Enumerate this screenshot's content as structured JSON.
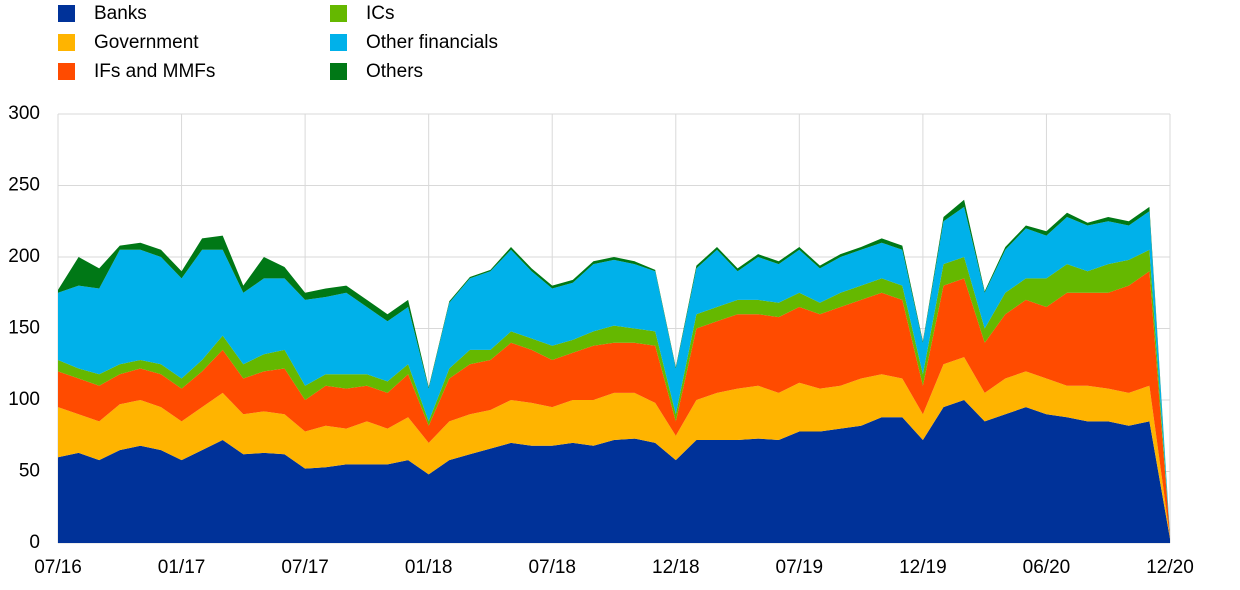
{
  "chart_data": {
    "type": "stacked-area",
    "categories": [
      "07/16",
      null,
      null,
      null,
      null,
      null,
      "01/17",
      null,
      null,
      null,
      null,
      null,
      "07/17",
      null,
      null,
      null,
      null,
      null,
      "01/18",
      null,
      null,
      null,
      null,
      null,
      "07/18",
      null,
      null,
      null,
      null,
      null,
      "12/18",
      null,
      null,
      null,
      null,
      null,
      "07/19",
      null,
      null,
      null,
      null,
      null,
      "12/19",
      null,
      null,
      null,
      null,
      null,
      "06/20",
      null,
      null,
      null,
      null,
      null,
      "12/20"
    ],
    "series": [
      {
        "name": "Banks",
        "color": "#003299",
        "values": [
          60,
          63,
          58,
          65,
          68,
          65,
          58,
          65,
          72,
          62,
          63,
          62,
          52,
          53,
          55,
          55,
          55,
          58,
          48,
          58,
          62,
          66,
          70,
          68,
          68,
          70,
          68,
          72,
          73,
          70,
          58,
          72,
          72,
          72,
          73,
          72,
          78,
          78,
          80,
          82,
          88,
          88,
          72,
          95,
          100,
          85,
          90,
          95,
          90,
          88,
          85,
          85,
          82,
          85,
          3
        ]
      },
      {
        "name": "Government",
        "color": "#ffb400",
        "values": [
          35,
          27,
          27,
          32,
          32,
          30,
          27,
          30,
          33,
          28,
          29,
          28,
          26,
          29,
          25,
          30,
          25,
          30,
          22,
          27,
          28,
          27,
          30,
          30,
          27,
          30,
          32,
          33,
          32,
          28,
          17,
          28,
          33,
          36,
          37,
          33,
          34,
          30,
          30,
          33,
          30,
          27,
          18,
          30,
          30,
          20,
          25,
          25,
          25,
          22,
          25,
          23,
          23,
          25,
          1
        ]
      },
      {
        "name": "IFs and MMFs",
        "color": "#ff4b00",
        "values": [
          25,
          25,
          25,
          21,
          22,
          23,
          23,
          25,
          30,
          25,
          28,
          32,
          22,
          28,
          28,
          25,
          25,
          30,
          12,
          30,
          35,
          35,
          40,
          37,
          33,
          33,
          38,
          35,
          35,
          40,
          10,
          50,
          50,
          52,
          50,
          53,
          53,
          52,
          55,
          55,
          57,
          55,
          20,
          55,
          55,
          35,
          45,
          50,
          50,
          65,
          65,
          67,
          75,
          80,
          1
        ]
      },
      {
        "name": "ICs",
        "color": "#65b800",
        "values": [
          8,
          7,
          8,
          7,
          6,
          7,
          7,
          8,
          10,
          10,
          12,
          13,
          10,
          8,
          10,
          8,
          8,
          7,
          3,
          7,
          10,
          7,
          8,
          8,
          10,
          9,
          10,
          12,
          10,
          10,
          5,
          10,
          10,
          10,
          10,
          10,
          10,
          8,
          10,
          10,
          10,
          10,
          8,
          15,
          15,
          10,
          15,
          15,
          20,
          20,
          15,
          20,
          18,
          15,
          0
        ]
      },
      {
        "name": "Other financials",
        "color": "#00b1ea",
        "values": [
          47,
          58,
          60,
          80,
          77,
          75,
          70,
          77,
          60,
          50,
          53,
          50,
          60,
          54,
          57,
          47,
          42,
          40,
          23,
          46,
          50,
          55,
          57,
          47,
          40,
          40,
          47,
          46,
          45,
          42,
          32,
          32,
          40,
          20,
          30,
          27,
          30,
          24,
          25,
          25,
          25,
          25,
          22,
          30,
          35,
          25,
          30,
          35,
          30,
          33,
          32,
          30,
          24,
          27,
          1
        ]
      },
      {
        "name": "Others",
        "color": "#007816",
        "values": [
          2,
          20,
          14,
          3,
          5,
          5,
          5,
          8,
          10,
          5,
          15,
          8,
          5,
          6,
          5,
          5,
          5,
          5,
          1,
          1,
          1,
          1,
          2,
          2,
          2,
          2,
          2,
          2,
          2,
          1,
          1,
          2,
          2,
          2,
          2,
          2,
          2,
          2,
          2,
          2,
          3,
          3,
          1,
          3,
          5,
          1,
          2,
          2,
          3,
          3,
          2,
          3,
          3,
          3,
          0
        ]
      }
    ],
    "ylim": [
      0,
      300
    ],
    "yticks": [
      0,
      50,
      100,
      150,
      200,
      250,
      300
    ],
    "grid": true
  }
}
